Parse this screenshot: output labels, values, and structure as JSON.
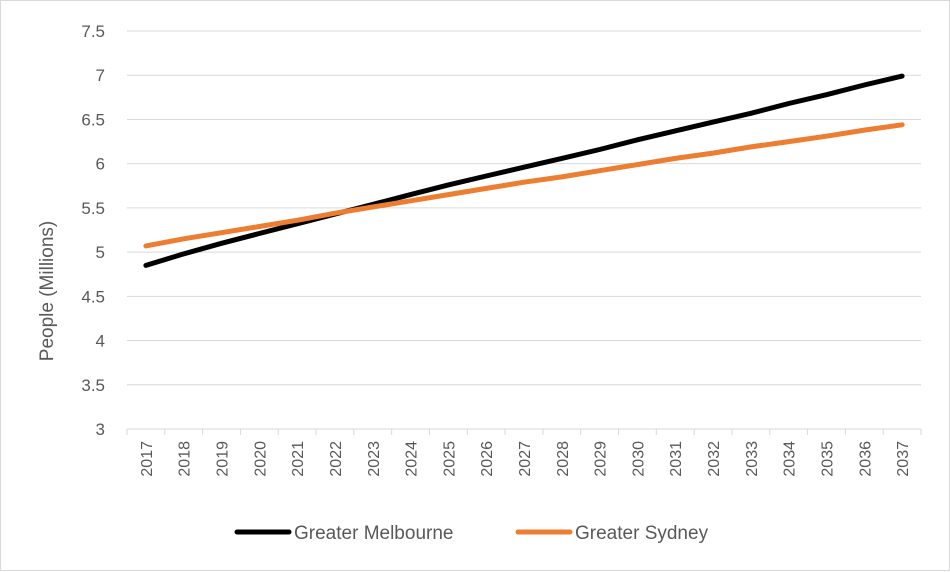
{
  "chart_data": {
    "type": "line",
    "title": "",
    "xlabel": "",
    "ylabel": "People (Millions)",
    "ylim": [
      3,
      7.5
    ],
    "y_ticks": [
      "3",
      "3.5",
      "4",
      "4.5",
      "5",
      "5.5",
      "6",
      "6.5",
      "7",
      "7.5"
    ],
    "grid": "horizontal",
    "legend_position": "bottom",
    "categories": [
      "2017",
      "2018",
      "2019",
      "2020",
      "2021",
      "2022",
      "2023",
      "2024",
      "2025",
      "2026",
      "2027",
      "2028",
      "2029",
      "2030",
      "2031",
      "2032",
      "2033",
      "2034",
      "2035",
      "2036",
      "2037"
    ],
    "series": [
      {
        "name": "Greater Melbourne",
        "color": "#000000",
        "values": [
          4.85,
          4.98,
          5.1,
          5.21,
          5.32,
          5.43,
          5.54,
          5.65,
          5.76,
          5.86,
          5.96,
          6.06,
          6.16,
          6.27,
          6.37,
          6.47,
          6.57,
          6.68,
          6.78,
          6.89,
          6.99
        ]
      },
      {
        "name": "Greater Sydney",
        "color": "#ED7D31",
        "values": [
          5.07,
          5.15,
          5.22,
          5.29,
          5.36,
          5.44,
          5.51,
          5.58,
          5.65,
          5.72,
          5.79,
          5.85,
          5.92,
          5.99,
          6.06,
          6.12,
          6.19,
          6.25,
          6.31,
          6.38,
          6.44
        ]
      }
    ]
  }
}
